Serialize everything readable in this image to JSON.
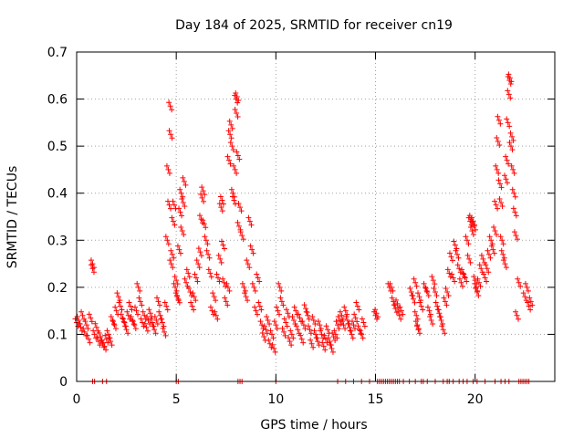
{
  "chart_data": {
    "type": "scatter",
    "title": "Day 184 of 2025, SRMTID for receiver cn19",
    "xlabel": "GPS time / hours",
    "ylabel": "SRMTID / TECUs",
    "xlim": [
      0,
      24
    ],
    "ylim": [
      0,
      0.7
    ],
    "xticks": [
      "0",
      "5",
      "10",
      "15",
      "20"
    ],
    "yticks": [
      "0",
      "0.1",
      "0.2",
      "0.3",
      "0.4",
      "0.5",
      "0.6",
      "0.7"
    ],
    "grid": true,
    "marker": "+",
    "color": "#ff0000",
    "series": [
      {
        "name": "SRMTID",
        "points": [
          [
            0.0,
            0.125
          ],
          [
            0.1,
            0.13
          ],
          [
            0.2,
            0.115
          ],
          [
            0.3,
            0.14
          ],
          [
            0.4,
            0.105
          ],
          [
            0.5,
            0.12
          ],
          [
            0.6,
            0.09
          ],
          [
            0.7,
            0.135
          ],
          [
            0.8,
            0.25
          ],
          [
            0.8,
            0.24
          ],
          [
            0.9,
            0.1
          ],
          [
            1.0,
            0.115
          ],
          [
            1.1,
            0.085
          ],
          [
            1.2,
            0.095
          ],
          [
            1.3,
            0.08
          ],
          [
            1.4,
            0.075
          ],
          [
            1.5,
            0.09
          ],
          [
            1.6,
            0.1
          ],
          [
            1.7,
            0.085
          ],
          [
            1.8,
            0.13
          ],
          [
            1.9,
            0.12
          ],
          [
            2.0,
            0.15
          ],
          [
            2.1,
            0.18
          ],
          [
            2.2,
            0.16
          ],
          [
            2.3,
            0.135
          ],
          [
            2.4,
            0.125
          ],
          [
            2.5,
            0.11
          ],
          [
            2.6,
            0.14
          ],
          [
            2.7,
            0.16
          ],
          [
            2.8,
            0.13
          ],
          [
            2.9,
            0.12
          ],
          [
            3.0,
            0.15
          ],
          [
            3.1,
            0.2
          ],
          [
            3.2,
            0.17
          ],
          [
            3.3,
            0.125
          ],
          [
            3.4,
            0.14
          ],
          [
            3.5,
            0.115
          ],
          [
            3.6,
            0.13
          ],
          [
            3.7,
            0.145
          ],
          [
            3.8,
            0.125
          ],
          [
            3.9,
            0.11
          ],
          [
            4.0,
            0.13
          ],
          [
            4.1,
            0.17
          ],
          [
            4.2,
            0.14
          ],
          [
            4.3,
            0.125
          ],
          [
            4.4,
            0.105
          ],
          [
            4.5,
            0.16
          ],
          [
            4.55,
            0.3
          ],
          [
            4.6,
            0.45
          ],
          [
            4.65,
            0.375
          ],
          [
            4.7,
            0.585
          ],
          [
            4.72,
            0.525
          ],
          [
            4.75,
            0.25
          ],
          [
            4.8,
            0.27
          ],
          [
            4.85,
            0.34
          ],
          [
            4.9,
            0.375
          ],
          [
            4.95,
            0.2
          ],
          [
            5.0,
            0.215
          ],
          [
            5.05,
            0.18
          ],
          [
            5.1,
            0.175
          ],
          [
            5.15,
            0.28
          ],
          [
            5.2,
            0.36
          ],
          [
            5.25,
            0.4
          ],
          [
            5.3,
            0.32
          ],
          [
            5.35,
            0.38
          ],
          [
            5.4,
            0.425
          ],
          [
            5.5,
            0.21
          ],
          [
            5.6,
            0.23
          ],
          [
            5.7,
            0.19
          ],
          [
            5.8,
            0.16
          ],
          [
            5.9,
            0.18
          ],
          [
            6.0,
            0.22
          ],
          [
            6.1,
            0.25
          ],
          [
            6.2,
            0.275
          ],
          [
            6.25,
            0.345
          ],
          [
            6.3,
            0.39
          ],
          [
            6.35,
            0.405
          ],
          [
            6.4,
            0.335
          ],
          [
            6.5,
            0.3
          ],
          [
            6.6,
            0.27
          ],
          [
            6.7,
            0.23
          ],
          [
            6.8,
            0.15
          ],
          [
            6.9,
            0.18
          ],
          [
            7.0,
            0.14
          ],
          [
            7.1,
            0.22
          ],
          [
            7.2,
            0.26
          ],
          [
            7.25,
            0.37
          ],
          [
            7.3,
            0.385
          ],
          [
            7.35,
            0.29
          ],
          [
            7.4,
            0.21
          ],
          [
            7.5,
            0.17
          ],
          [
            7.6,
            0.2
          ],
          [
            7.65,
            0.47
          ],
          [
            7.7,
            0.525
          ],
          [
            7.75,
            0.545
          ],
          [
            7.8,
            0.5
          ],
          [
            7.85,
            0.4
          ],
          [
            7.9,
            0.385
          ],
          [
            7.95,
            0.45
          ],
          [
            8.0,
            0.6
          ],
          [
            8.02,
            0.57
          ],
          [
            8.05,
            0.605
          ],
          [
            8.1,
            0.48
          ],
          [
            8.15,
            0.33
          ],
          [
            8.2,
            0.37
          ],
          [
            8.3,
            0.31
          ],
          [
            8.4,
            0.2
          ],
          [
            8.5,
            0.18
          ],
          [
            8.6,
            0.25
          ],
          [
            8.7,
            0.34
          ],
          [
            8.8,
            0.28
          ],
          [
            8.9,
            0.2
          ],
          [
            9.0,
            0.15
          ],
          [
            9.1,
            0.22
          ],
          [
            9.2,
            0.16
          ],
          [
            9.3,
            0.12
          ],
          [
            9.4,
            0.095
          ],
          [
            9.5,
            0.11
          ],
          [
            9.6,
            0.13
          ],
          [
            9.7,
            0.08
          ],
          [
            9.8,
            0.1
          ],
          [
            9.9,
            0.07
          ],
          [
            10.0,
            0.12
          ],
          [
            10.1,
            0.15
          ],
          [
            10.2,
            0.2
          ],
          [
            10.3,
            0.17
          ],
          [
            10.4,
            0.105
          ],
          [
            10.5,
            0.125
          ],
          [
            10.6,
            0.145
          ],
          [
            10.7,
            0.085
          ],
          [
            10.8,
            0.1
          ],
          [
            10.9,
            0.13
          ],
          [
            11.0,
            0.15
          ],
          [
            11.1,
            0.11
          ],
          [
            11.2,
            0.135
          ],
          [
            11.3,
            0.09
          ],
          [
            11.4,
            0.12
          ],
          [
            11.5,
            0.155
          ],
          [
            11.6,
            0.14
          ],
          [
            11.7,
            0.11
          ],
          [
            11.8,
            0.08
          ],
          [
            11.9,
            0.13
          ],
          [
            12.0,
            0.1
          ],
          [
            12.1,
            0.085
          ],
          [
            12.2,
            0.12
          ],
          [
            12.3,
            0.1
          ],
          [
            12.4,
            0.075
          ],
          [
            12.5,
            0.09
          ],
          [
            12.6,
            0.11
          ],
          [
            12.7,
            0.085
          ],
          [
            12.8,
            0.07
          ],
          [
            12.9,
            0.095
          ],
          [
            13.0,
            0.1
          ],
          [
            13.1,
            0.12
          ],
          [
            13.2,
            0.13
          ],
          [
            13.3,
            0.14
          ],
          [
            13.4,
            0.12
          ],
          [
            13.5,
            0.15
          ],
          [
            13.6,
            0.13
          ],
          [
            13.7,
            0.115
          ],
          [
            13.8,
            0.1
          ],
          [
            13.9,
            0.12
          ],
          [
            14.0,
            0.135
          ],
          [
            14.1,
            0.16
          ],
          [
            14.2,
            0.11
          ],
          [
            14.3,
            0.1
          ],
          [
            14.4,
            0.125
          ],
          [
            15.0,
            0.14
          ],
          [
            15.05,
            0.145
          ],
          [
            15.7,
            0.2
          ],
          [
            15.8,
            0.2
          ],
          [
            15.9,
            0.17
          ],
          [
            16.0,
            0.155
          ],
          [
            16.1,
            0.165
          ],
          [
            16.2,
            0.14
          ],
          [
            16.3,
            0.15
          ],
          [
            16.8,
            0.19
          ],
          [
            16.9,
            0.175
          ],
          [
            17.0,
            0.21
          ],
          [
            17.05,
            0.14
          ],
          [
            17.1,
            0.12
          ],
          [
            17.15,
            0.11
          ],
          [
            17.2,
            0.18
          ],
          [
            17.3,
            0.16
          ],
          [
            17.5,
            0.2
          ],
          [
            17.6,
            0.19
          ],
          [
            17.7,
            0.15
          ],
          [
            17.8,
            0.13
          ],
          [
            17.9,
            0.215
          ],
          [
            18.0,
            0.19
          ],
          [
            18.1,
            0.16
          ],
          [
            18.2,
            0.145
          ],
          [
            18.3,
            0.13
          ],
          [
            18.4,
            0.11
          ],
          [
            18.5,
            0.17
          ],
          [
            18.6,
            0.19
          ],
          [
            18.7,
            0.23
          ],
          [
            18.8,
            0.265
          ],
          [
            18.9,
            0.22
          ],
          [
            19.0,
            0.29
          ],
          [
            19.1,
            0.27
          ],
          [
            19.2,
            0.24
          ],
          [
            19.3,
            0.21
          ],
          [
            19.4,
            0.23
          ],
          [
            19.5,
            0.22
          ],
          [
            19.6,
            0.3
          ],
          [
            19.7,
            0.26
          ],
          [
            19.75,
            0.34
          ],
          [
            19.8,
            0.345
          ],
          [
            19.85,
            0.32
          ],
          [
            19.9,
            0.34
          ],
          [
            19.95,
            0.33
          ],
          [
            20.0,
            0.215
          ],
          [
            20.05,
            0.2
          ],
          [
            20.1,
            0.19
          ],
          [
            20.2,
            0.21
          ],
          [
            20.3,
            0.24
          ],
          [
            20.4,
            0.26
          ],
          [
            20.5,
            0.22
          ],
          [
            20.6,
            0.24
          ],
          [
            20.7,
            0.27
          ],
          [
            20.8,
            0.3
          ],
          [
            20.9,
            0.28
          ],
          [
            21.0,
            0.32
          ],
          [
            21.05,
            0.375
          ],
          [
            21.1,
            0.45
          ],
          [
            21.15,
            0.51
          ],
          [
            21.2,
            0.555
          ],
          [
            21.25,
            0.42
          ],
          [
            21.3,
            0.38
          ],
          [
            21.35,
            0.3
          ],
          [
            21.4,
            0.27
          ],
          [
            21.5,
            0.25
          ],
          [
            21.55,
            0.43
          ],
          [
            21.6,
            0.47
          ],
          [
            21.65,
            0.55
          ],
          [
            21.7,
            0.61
          ],
          [
            21.72,
            0.64
          ],
          [
            21.75,
            0.645
          ],
          [
            21.8,
            0.5
          ],
          [
            21.85,
            0.52
          ],
          [
            21.9,
            0.45
          ],
          [
            21.95,
            0.4
          ],
          [
            22.0,
            0.36
          ],
          [
            22.05,
            0.31
          ],
          [
            22.1,
            0.14
          ],
          [
            22.2,
            0.21
          ],
          [
            22.5,
            0.18
          ],
          [
            22.6,
            0.2
          ],
          [
            22.7,
            0.16
          ],
          [
            22.8,
            0.17
          ]
        ],
        "zero_points_x": [
          0.8,
          0.9,
          1.3,
          1.5,
          5.0,
          5.1,
          8.1,
          8.2,
          8.3,
          10.0,
          13.1,
          13.5,
          13.9,
          14.3,
          14.7,
          15.1,
          15.2,
          15.3,
          15.4,
          15.5,
          15.6,
          15.7,
          15.8,
          15.9,
          16.0,
          16.1,
          16.2,
          16.4,
          16.7,
          17.0,
          17.3,
          17.4,
          17.6,
          18.0,
          18.4,
          18.6,
          18.7,
          18.9,
          19.2,
          19.4,
          19.6,
          19.9,
          20.1,
          20.5,
          21.0,
          21.3,
          21.5,
          21.7,
          22.2,
          22.3,
          22.4,
          22.5,
          22.6,
          22.7
        ]
      }
    ]
  }
}
